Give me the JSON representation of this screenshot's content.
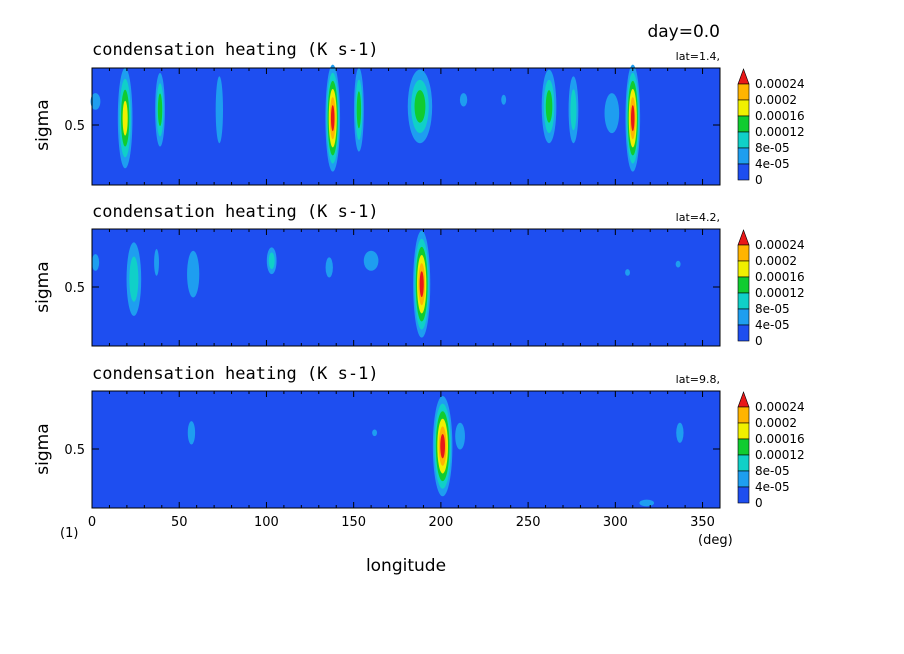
{
  "header": {
    "day_label": "day=0.0"
  },
  "colors": {
    "levels": [
      "#1e4ef0",
      "#1e9ef0",
      "#10d0c8",
      "#10cc30",
      "#f0f000",
      "#ffb400",
      "#e81818"
    ],
    "background_level": "#1e4ef0"
  },
  "x_tick_labels": [
    "0",
    "50",
    "100",
    "150",
    "200",
    "250",
    "300",
    "350"
  ],
  "x_axis": {
    "label": "longitude",
    "unit": "(deg)",
    "corner_note": "(1)"
  },
  "colorbar_labels": [
    "0.00024",
    "0.0002",
    "0.00016",
    "0.00012",
    "8e-05",
    "4e-05",
    "0"
  ],
  "chart_data": [
    {
      "type": "heatmap",
      "title": "condensation heating (K s-1)",
      "subtitle": "lat=1.4,",
      "xlabel": "longitude",
      "xunit": "(deg)",
      "xlim": [
        0,
        360
      ],
      "ylabel": "sigma",
      "ylim": [
        0.15,
        0.85
      ],
      "yticks": [
        0.5
      ],
      "colorbar_levels": [
        0,
        4e-05,
        8e-05,
        0.00012,
        0.00016,
        0.0002,
        0.00024
      ],
      "cells": [
        {
          "lon": 2,
          "sigma": 0.65,
          "dlon": 2,
          "dsig": 0.05,
          "value": 5e-05
        },
        {
          "lon": 19,
          "sigma": 0.55,
          "dlon": 3,
          "dsig": 0.3,
          "value": 0.00018
        },
        {
          "lon": 39,
          "sigma": 0.6,
          "dlon": 2,
          "dsig": 0.22,
          "value": 0.00013
        },
        {
          "lon": 73,
          "sigma": 0.6,
          "dlon": 1.5,
          "dsig": 0.2,
          "value": 5e-05
        },
        {
          "lon": 138,
          "sigma": 0.55,
          "dlon": 3,
          "dsig": 0.32,
          "value": 0.00026
        },
        {
          "lon": 153,
          "sigma": 0.6,
          "dlon": 2,
          "dsig": 0.25,
          "value": 0.00013
        },
        {
          "lon": 188,
          "sigma": 0.62,
          "dlon": 5,
          "dsig": 0.22,
          "value": 0.00015
        },
        {
          "lon": 213,
          "sigma": 0.66,
          "dlon": 1.5,
          "dsig": 0.04,
          "value": 5e-05
        },
        {
          "lon": 236,
          "sigma": 0.66,
          "dlon": 1,
          "dsig": 0.03,
          "value": 5e-05
        },
        {
          "lon": 262,
          "sigma": 0.62,
          "dlon": 3,
          "dsig": 0.22,
          "value": 0.00014
        },
        {
          "lon": 276,
          "sigma": 0.6,
          "dlon": 2,
          "dsig": 0.2,
          "value": 8e-05
        },
        {
          "lon": 298,
          "sigma": 0.58,
          "dlon": 3,
          "dsig": 0.12,
          "value": 6e-05
        },
        {
          "lon": 310,
          "sigma": 0.55,
          "dlon": 3,
          "dsig": 0.32,
          "value": 0.00026
        }
      ]
    },
    {
      "type": "heatmap",
      "title": "condensation heating (K s-1)",
      "subtitle": "lat=4.2,",
      "xlabel": "longitude",
      "xunit": "(deg)",
      "xlim": [
        0,
        360
      ],
      "ylabel": "sigma",
      "ylim": [
        0.15,
        0.85
      ],
      "yticks": [
        0.5
      ],
      "colorbar_levels": [
        0,
        4e-05,
        8e-05,
        0.00012,
        0.00016,
        0.0002,
        0.00024
      ],
      "cells": [
        {
          "lon": 2,
          "sigma": 0.65,
          "dlon": 1.5,
          "dsig": 0.05,
          "value": 5e-05
        },
        {
          "lon": 24,
          "sigma": 0.55,
          "dlon": 3,
          "dsig": 0.22,
          "value": 0.00011
        },
        {
          "lon": 37,
          "sigma": 0.65,
          "dlon": 1,
          "dsig": 0.08,
          "value": 5e-05
        },
        {
          "lon": 58,
          "sigma": 0.58,
          "dlon": 2.5,
          "dsig": 0.14,
          "value": 6e-05
        },
        {
          "lon": 103,
          "sigma": 0.66,
          "dlon": 2,
          "dsig": 0.08,
          "value": 9e-05
        },
        {
          "lon": 136,
          "sigma": 0.62,
          "dlon": 1.5,
          "dsig": 0.06,
          "value": 6e-05
        },
        {
          "lon": 160,
          "sigma": 0.66,
          "dlon": 3,
          "dsig": 0.06,
          "value": 6e-05
        },
        {
          "lon": 189,
          "sigma": 0.52,
          "dlon": 3.5,
          "dsig": 0.32,
          "value": 0.00027
        },
        {
          "lon": 307,
          "sigma": 0.59,
          "dlon": 1,
          "dsig": 0.02,
          "value": 4e-05
        },
        {
          "lon": 336,
          "sigma": 0.64,
          "dlon": 1,
          "dsig": 0.02,
          "value": 5e-05
        }
      ]
    },
    {
      "type": "heatmap",
      "title": "condensation heating (K s-1)",
      "subtitle": "lat=9.8,",
      "xlabel": "longitude",
      "xunit": "(deg)",
      "xlim": [
        0,
        360
      ],
      "ylabel": "sigma",
      "ylim": [
        0.15,
        0.85
      ],
      "yticks": [
        0.5
      ],
      "colorbar_levels": [
        0,
        4e-05,
        8e-05,
        0.00012,
        0.00016,
        0.0002,
        0.00024
      ],
      "cells": [
        {
          "lon": 57,
          "sigma": 0.6,
          "dlon": 1.5,
          "dsig": 0.07,
          "value": 5e-05
        },
        {
          "lon": 162,
          "sigma": 0.6,
          "dlon": 1,
          "dsig": 0.02,
          "value": 4e-05
        },
        {
          "lon": 201,
          "sigma": 0.52,
          "dlon": 4,
          "dsig": 0.3,
          "value": 0.00027
        },
        {
          "lon": 211,
          "sigma": 0.58,
          "dlon": 2,
          "dsig": 0.08,
          "value": 7e-05
        },
        {
          "lon": 337,
          "sigma": 0.6,
          "dlon": 1.5,
          "dsig": 0.06,
          "value": 5e-05
        },
        {
          "lon": 318,
          "sigma": 0.18,
          "dlon": 3,
          "dsig": 0.02,
          "value": 4e-05
        }
      ]
    }
  ]
}
